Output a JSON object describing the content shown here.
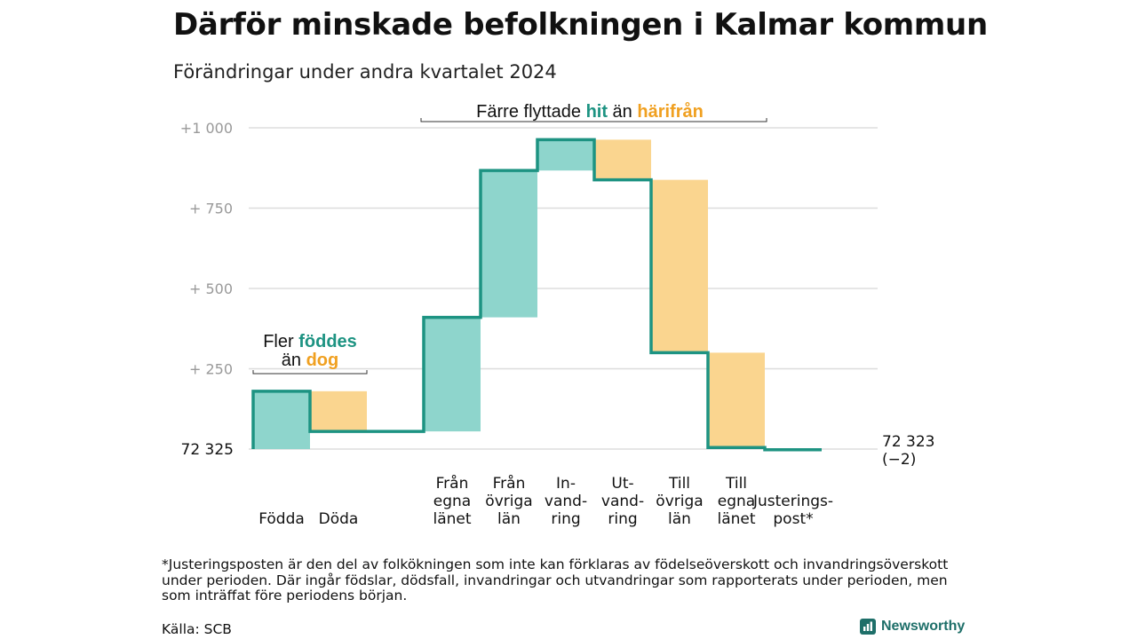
{
  "title": "Därför minskade befolkningen i Kalmar kommun",
  "subtitle": "Förändringar under andra kvartalet 2024",
  "colors": {
    "increase": "#8ed5cc",
    "decrease": "#fad58f",
    "line": "#1d9382",
    "accent_teal": "#1d9382",
    "accent_orange": "#f0a020",
    "grid": "#dddddd",
    "tick": "#999999"
  },
  "chart_data": {
    "type": "waterfall",
    "ylim": [
      0,
      1000
    ],
    "yticks": [
      {
        "value": 1000,
        "label": "+1  000"
      },
      {
        "value": 750,
        "label": "+  750"
      },
      {
        "value": 500,
        "label": "+  500"
      },
      {
        "value": 250,
        "label": "+  250"
      }
    ],
    "start_label": "72  325",
    "end_label": [
      "72 323",
      "(−2)"
    ],
    "grid": true,
    "steps": [
      {
        "label": [
          "Födda"
        ],
        "from": 0,
        "to": 180,
        "kind": "increase"
      },
      {
        "label": [
          "Döda"
        ],
        "from": 180,
        "to": 55,
        "kind": "decrease"
      },
      {
        "label": [
          ""
        ],
        "from": 55,
        "to": 55,
        "kind": "gap"
      },
      {
        "label": [
          "Från",
          "egna",
          "länet"
        ],
        "from": 55,
        "to": 410,
        "kind": "increase"
      },
      {
        "label": [
          "Från",
          "övriga",
          "län"
        ],
        "from": 410,
        "to": 867,
        "kind": "increase"
      },
      {
        "label": [
          "In-",
          "vand-",
          "ring"
        ],
        "from": 867,
        "to": 963,
        "kind": "increase"
      },
      {
        "label": [
          "Ut-",
          "vand-",
          "ring"
        ],
        "from": 963,
        "to": 838,
        "kind": "decrease"
      },
      {
        "label": [
          "Till",
          "övriga",
          "län"
        ],
        "from": 838,
        "to": 300,
        "kind": "decrease"
      },
      {
        "label": [
          "Till",
          "egna",
          "länet"
        ],
        "from": 300,
        "to": 5,
        "kind": "decrease"
      },
      {
        "label": [
          "Justerings-",
          "post*"
        ],
        "from": 5,
        "to": -2,
        "kind": "adjust"
      }
    ],
    "annotations": [
      {
        "id": "births",
        "lines": [
          [
            {
              "text": "Fler ",
              "role": "plain"
            },
            {
              "text": "föddes",
              "role": "teal"
            }
          ],
          [
            {
              "text": "än ",
              "role": "plain"
            },
            {
              "text": "dog",
              "role": "orange"
            }
          ]
        ]
      },
      {
        "id": "moves",
        "lines": [
          [
            {
              "text": "Färre flyttade ",
              "role": "plain"
            },
            {
              "text": "hit",
              "role": "teal"
            },
            {
              "text": " än ",
              "role": "plain"
            },
            {
              "text": "härifrån",
              "role": "orange"
            }
          ]
        ]
      }
    ]
  },
  "footnote": "*Justeringsposten är den del av folkökningen som inte kan förklaras av födelseöverskott och invandringsöverskott under perioden. Där ingår födslar, dödsfall, invandringar och utvandringar som rapporterats under perioden, men som inträffat före periodens början.",
  "source": "Källa: SCB",
  "brand": {
    "name": "Newsworthy",
    "icon": "newsworthy-logo-icon"
  }
}
